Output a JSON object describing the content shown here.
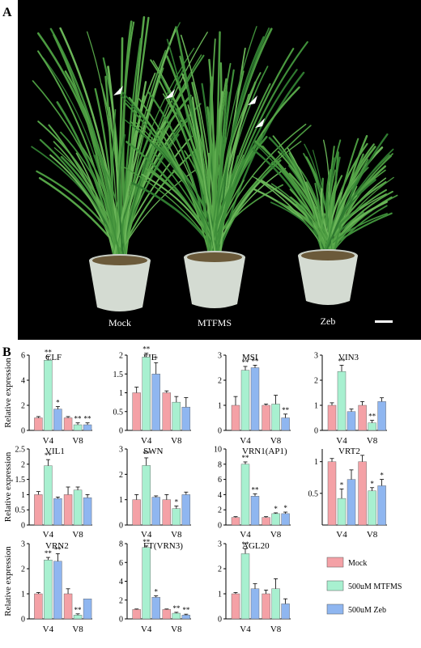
{
  "panel_a": {
    "label": "A",
    "pot_labels": [
      "Mock",
      "MTFMS",
      "Zeb"
    ]
  },
  "panel_b": {
    "label": "B",
    "y_axis_label": "Relative expression",
    "legend": {
      "entries": [
        {
          "name": "Mock",
          "color": "#f4a1a6"
        },
        {
          "name": "500uM MTFMS",
          "color": "#a8f0d0"
        },
        {
          "name": "500uM Zeb",
          "color": "#8fb6f0"
        }
      ]
    }
  },
  "chart_data": [
    {
      "type": "bar",
      "title": "CLF",
      "categories": [
        "V4",
        "V8"
      ],
      "ylim": [
        0,
        6
      ],
      "yticks": [
        0,
        2,
        4,
        6
      ],
      "series": [
        {
          "name": "Mock",
          "values": [
            1.0,
            1.0
          ],
          "errors": [
            0.1,
            0.1
          ]
        },
        {
          "name": "500uM MTFMS",
          "values": [
            5.6,
            0.45
          ],
          "errors": [
            0.3,
            0.15
          ]
        },
        {
          "name": "500uM Zeb",
          "values": [
            1.7,
            0.45
          ],
          "errors": [
            0.2,
            0.15
          ]
        }
      ],
      "annotations": [
        [
          "",
          ""
        ],
        [
          "**",
          "**"
        ],
        [
          "*",
          "**"
        ]
      ]
    },
    {
      "type": "bar",
      "title": "FIE",
      "categories": [
        "V4",
        "V8"
      ],
      "ylim": [
        0,
        2
      ],
      "yticks": [
        0,
        0.5,
        1,
        1.5,
        2
      ],
      "series": [
        {
          "name": "Mock",
          "values": [
            1.0,
            1.0
          ],
          "errors": [
            0.15,
            0.05
          ]
        },
        {
          "name": "500uM MTFMS",
          "values": [
            1.95,
            0.75
          ],
          "errors": [
            0.1,
            0.15
          ]
        },
        {
          "name": "500uM Zeb",
          "values": [
            1.5,
            0.62
          ],
          "errors": [
            0.3,
            0.25
          ]
        }
      ],
      "annotations": [
        [
          "",
          ""
        ],
        [
          "**",
          ""
        ],
        [
          "*",
          ""
        ]
      ]
    },
    {
      "type": "bar",
      "title": "MSI",
      "categories": [
        "V4",
        "V8"
      ],
      "ylim": [
        0,
        3
      ],
      "yticks": [
        0,
        1,
        2,
        3
      ],
      "series": [
        {
          "name": "Mock",
          "values": [
            1.0,
            1.0
          ],
          "errors": [
            0.35,
            0.05
          ]
        },
        {
          "name": "500uM MTFMS",
          "values": [
            2.4,
            1.05
          ],
          "errors": [
            0.15,
            0.35
          ]
        },
        {
          "name": "500uM Zeb",
          "values": [
            2.5,
            0.5
          ],
          "errors": [
            0.1,
            0.15
          ]
        }
      ],
      "annotations": [
        [
          "",
          ""
        ],
        [
          "**",
          ""
        ],
        [
          "**",
          "**"
        ]
      ]
    },
    {
      "type": "bar",
      "title": "VIN3",
      "categories": [
        "V4",
        "V8"
      ],
      "ylim": [
        0,
        3
      ],
      "yticks": [
        0,
        1,
        2,
        3
      ],
      "series": [
        {
          "name": "Mock",
          "values": [
            1.0,
            1.0
          ],
          "errors": [
            0.1,
            0.15
          ]
        },
        {
          "name": "500uM MTFMS",
          "values": [
            2.35,
            0.3
          ],
          "errors": [
            0.25,
            0.1
          ]
        },
        {
          "name": "500uM Zeb",
          "values": [
            0.75,
            1.15
          ],
          "errors": [
            0.1,
            0.15
          ]
        }
      ],
      "annotations": [
        [
          "",
          ""
        ],
        [
          "**",
          "**"
        ],
        [
          "",
          ""
        ]
      ]
    },
    {
      "type": "bar",
      "title": "VIL1",
      "categories": [
        "V4",
        "V8"
      ],
      "ylim": [
        0,
        2.5
      ],
      "yticks": [
        0,
        0.5,
        1,
        1.5,
        2,
        2.5
      ],
      "series": [
        {
          "name": "Mock",
          "values": [
            1.0,
            1.0
          ],
          "errors": [
            0.1,
            0.25
          ]
        },
        {
          "name": "500uM MTFMS",
          "values": [
            1.95,
            1.15
          ],
          "errors": [
            0.2,
            0.1
          ]
        },
        {
          "name": "500uM Zeb",
          "values": [
            0.87,
            0.9
          ],
          "errors": [
            0.05,
            0.1
          ]
        }
      ],
      "annotations": [
        [
          "",
          ""
        ],
        [
          "**",
          ""
        ],
        [
          "",
          ""
        ]
      ]
    },
    {
      "type": "bar",
      "title": "SWN",
      "categories": [
        "V4",
        "V8"
      ],
      "ylim": [
        0,
        3
      ],
      "yticks": [
        0,
        1,
        2,
        3
      ],
      "series": [
        {
          "name": "Mock",
          "values": [
            1.0,
            1.0
          ],
          "errors": [
            0.2,
            0.2
          ]
        },
        {
          "name": "500uM MTFMS",
          "values": [
            2.35,
            0.65
          ],
          "errors": [
            0.3,
            0.1
          ]
        },
        {
          "name": "500uM Zeb",
          "values": [
            1.1,
            1.2
          ],
          "errors": [
            0.05,
            0.1
          ]
        }
      ],
      "annotations": [
        [
          "",
          ""
        ],
        [
          "**",
          "*"
        ],
        [
          "",
          ""
        ]
      ]
    },
    {
      "type": "bar",
      "title": "VRN1(AP1)",
      "categories": [
        "V4",
        "V8"
      ],
      "ylim": [
        0,
        10
      ],
      "yticks": [
        0,
        2,
        4,
        6,
        8,
        10
      ],
      "series": [
        {
          "name": "Mock",
          "values": [
            1.0,
            1.0
          ],
          "errors": [
            0.1,
            0.1
          ]
        },
        {
          "name": "500uM MTFMS",
          "values": [
            8.0,
            1.5
          ],
          "errors": [
            0.3,
            0.1
          ]
        },
        {
          "name": "500uM Zeb",
          "values": [
            3.8,
            1.5
          ],
          "errors": [
            0.3,
            0.2
          ]
        }
      ],
      "annotations": [
        [
          "",
          ""
        ],
        [
          "**",
          "*"
        ],
        [
          "**",
          "*"
        ]
      ]
    },
    {
      "type": "bar",
      "title": "VRT2",
      "categories": [
        "V4",
        "V8"
      ],
      "ylim": [
        0,
        1.2
      ],
      "yticks": [
        0.5,
        1
      ],
      "ylabels": [
        "0.5",
        "1"
      ],
      "series": [
        {
          "name": "Mock",
          "values": [
            1.0,
            1.0
          ],
          "errors": [
            0.05,
            0.1
          ]
        },
        {
          "name": "500uM MTFMS",
          "values": [
            0.42,
            0.54
          ],
          "errors": [
            0.15,
            0.05
          ]
        },
        {
          "name": "500uM Zeb",
          "values": [
            0.72,
            0.62
          ],
          "errors": [
            0.15,
            0.1
          ]
        }
      ],
      "annotations": [
        [
          "",
          ""
        ],
        [
          "*",
          "*"
        ],
        [
          "",
          "*"
        ]
      ]
    },
    {
      "type": "bar",
      "title": "VRN2",
      "categories": [
        "V4",
        "V8"
      ],
      "ylim": [
        0,
        3
      ],
      "yticks": [
        0,
        1,
        2,
        3
      ],
      "series": [
        {
          "name": "Mock",
          "values": [
            1.0,
            1.0
          ],
          "errors": [
            0.05,
            0.2
          ]
        },
        {
          "name": "500uM MTFMS",
          "values": [
            2.35,
            0.15
          ],
          "errors": [
            0.1,
            0.05
          ]
        },
        {
          "name": "500uM Zeb",
          "values": [
            2.3,
            0.8
          ],
          "errors": [
            0.3,
            0.0
          ]
        }
      ],
      "annotations": [
        [
          "",
          ""
        ],
        [
          "**",
          "**"
        ],
        [
          "**",
          ""
        ]
      ]
    },
    {
      "type": "bar",
      "title": "FT(VRN3)",
      "categories": [
        "V4",
        "V8"
      ],
      "ylim": [
        0,
        8
      ],
      "yticks": [
        0,
        2,
        4,
        6,
        8
      ],
      "series": [
        {
          "name": "Mock",
          "values": [
            1.0,
            1.0
          ],
          "errors": [
            0.05,
            0.05
          ]
        },
        {
          "name": "500uM MTFMS",
          "values": [
            7.6,
            0.6
          ],
          "errors": [
            0.15,
            0.1
          ]
        },
        {
          "name": "500uM Zeb",
          "values": [
            2.3,
            0.4
          ],
          "errors": [
            0.15,
            0.1
          ]
        }
      ],
      "annotations": [
        [
          "",
          ""
        ],
        [
          "**",
          "**"
        ],
        [
          "*",
          "**"
        ]
      ]
    },
    {
      "type": "bar",
      "title": "AGL20",
      "categories": [
        "V4",
        "V8"
      ],
      "ylim": [
        0,
        3
      ],
      "yticks": [
        0,
        1,
        2,
        3
      ],
      "series": [
        {
          "name": "Mock",
          "values": [
            1.0,
            1.0
          ],
          "errors": [
            0.05,
            0.15
          ]
        },
        {
          "name": "500uM MTFMS",
          "values": [
            2.6,
            1.2
          ],
          "errors": [
            0.2,
            0.4
          ]
        },
        {
          "name": "500uM Zeb",
          "values": [
            1.2,
            0.6
          ],
          "errors": [
            0.2,
            0.2
          ]
        }
      ],
      "annotations": [
        [
          "",
          ""
        ],
        [
          "**",
          ""
        ],
        [
          "",
          ""
        ]
      ]
    }
  ]
}
